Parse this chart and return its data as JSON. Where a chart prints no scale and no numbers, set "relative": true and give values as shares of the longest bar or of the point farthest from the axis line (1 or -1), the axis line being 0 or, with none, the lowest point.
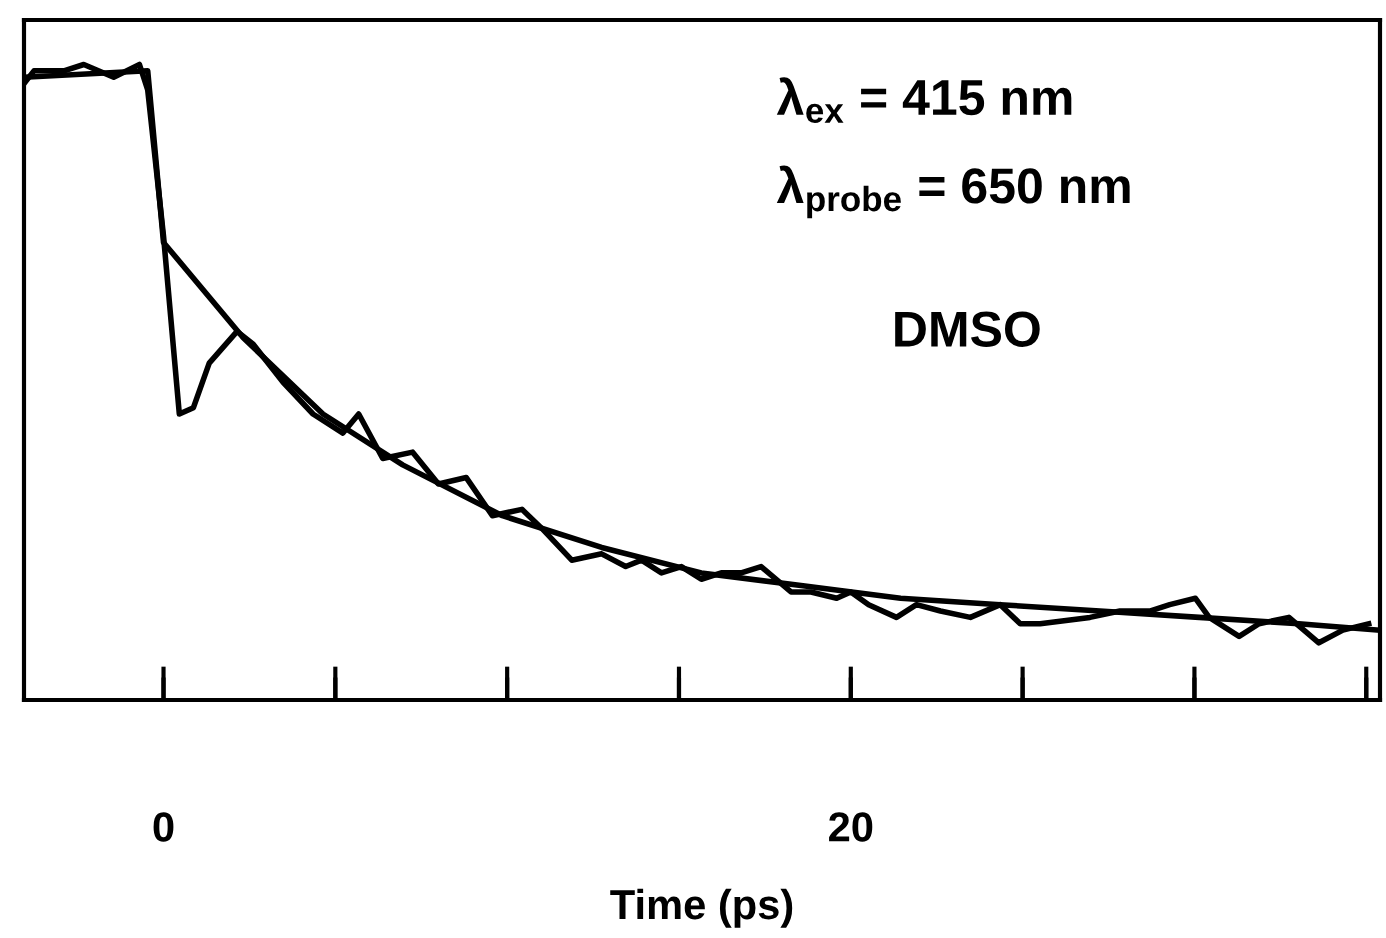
{
  "chart_data": {
    "type": "line",
    "relative": true,
    "xlabel": "Time (ps)",
    "annotations": [
      "λ$_{ex}$ = 415 nm",
      "λ$_{probe}$ = 650 nm",
      "DMSO"
    ],
    "xlim": [
      -4.06,
      35.4
    ],
    "xticks": [
      0,
      {
        "value": 5,
        "label": null
      },
      {
        "value": 10,
        "label": null
      },
      {
        "value": 15,
        "label": null
      },
      20,
      {
        "value": 25,
        "label": null
      },
      {
        "value": 30,
        "label": null
      },
      {
        "value": 35,
        "label": null
      }
    ],
    "grid": false,
    "marker": "none",
    "line_style": "solid",
    "series": [
      {
        "color": "#000000",
        "x": [
          -4.06,
          -3.77,
          -2.9,
          -2.32,
          -1.45,
          -0.7,
          -0.46,
          0,
          0.46,
          0.87,
          1.33,
          2.14,
          2.61,
          3.48,
          4.35,
          5.22,
          5.68,
          6.38,
          7.25,
          8.0,
          8.81,
          9.57,
          10.43,
          11.01,
          11.88,
          12.75,
          13.45,
          13.91,
          14.49,
          15.07,
          15.65,
          16.23,
          16.81,
          17.39,
          18.26,
          18.84,
          19.59,
          20.0,
          20.52,
          21.33,
          21.91,
          22.61,
          23.48,
          24.35,
          24.93,
          25.51,
          26.96,
          27.83,
          28.7,
          29.28,
          30.03,
          30.43,
          31.3,
          31.88,
          32.75,
          33.62,
          34.32,
          35.07
        ],
        "values": [
          0.97,
          0.99,
          0.99,
          1.0,
          0.98,
          1.0,
          0.96,
          0.73,
          0.45,
          0.46,
          0.53,
          0.58,
          0.56,
          0.5,
          0.45,
          0.42,
          0.45,
          0.38,
          0.39,
          0.34,
          0.35,
          0.29,
          0.3,
          0.27,
          0.22,
          0.23,
          0.21,
          0.22,
          0.2,
          0.21,
          0.19,
          0.2,
          0.2,
          0.21,
          0.17,
          0.17,
          0.16,
          0.17,
          0.15,
          0.13,
          0.15,
          0.14,
          0.13,
          0.15,
          0.12,
          0.12,
          0.13,
          0.14,
          0.14,
          0.15,
          0.16,
          0.13,
          0.1,
          0.12,
          0.13,
          0.09,
          0.11,
          0.12
        ]
      },
      {
        "color": "#000000",
        "x": [
          -4.06,
          -0.46,
          0,
          2.32,
          4.64,
          6.96,
          9.86,
          12.75,
          15.65,
          18.55,
          21.45,
          24.35,
          27.25,
          30.14,
          33.04,
          35.36
        ],
        "values": [
          0.98,
          0.99,
          0.72,
          0.57,
          0.45,
          0.37,
          0.29,
          0.24,
          0.2,
          0.18,
          0.16,
          0.15,
          0.14,
          0.13,
          0.12,
          0.11
        ]
      }
    ]
  }
}
